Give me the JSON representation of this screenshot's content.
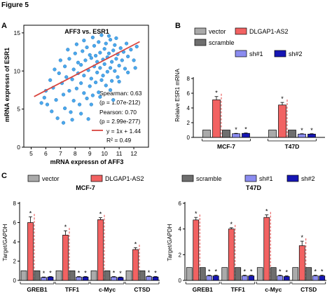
{
  "figure_title": "Figure 5",
  "panels": {
    "a": "A",
    "b": "B",
    "c": "C"
  },
  "colors": {
    "vector": "#aaaaaa",
    "dlgap": "#f26262",
    "scramble": "#6e6e6e",
    "sh1": "#8b8cf0",
    "sh2": "#1616b4",
    "scatter_point": "#4aa8ec",
    "fit_line": "#d9453e"
  },
  "legend": {
    "items": [
      {
        "key": "vector",
        "label": "vector"
      },
      {
        "key": "dlgap",
        "label": "DLGAP1-AS2"
      },
      {
        "key": "scramble",
        "label": "scramble"
      },
      {
        "key": "sh1",
        "label": "sh#1"
      },
      {
        "key": "sh2",
        "label": "sh#2"
      }
    ]
  },
  "scatter_stats": {
    "spearman": "Spearman: 0.63",
    "spearman_p": "(p = 1.07e-212)",
    "pearson": "Pearson: 0.70",
    "pearson_p": "(p = 2.99e-277)",
    "fit": "y = 1x + 1.44",
    "r2": "R² = 0.49"
  },
  "chart_data": [
    {
      "type": "scatter",
      "title": "AFF3 vs. ESR1",
      "xlabel": "mRNA expressn of AFF3",
      "ylabel": "mRNA expressn of ESR1",
      "xlim": [
        4.5,
        13
      ],
      "ylim": [
        0,
        16
      ],
      "xticks": [
        5,
        6,
        7,
        8,
        9,
        10,
        11,
        12
      ],
      "yticks": [
        0,
        5,
        10,
        15
      ],
      "fit_line": {
        "slope": 1,
        "intercept": 1.44
      },
      "points": [
        [
          5.9,
          6.5
        ],
        [
          6.1,
          5.6
        ],
        [
          6.5,
          7.8
        ],
        [
          6.7,
          6.2
        ],
        [
          6.9,
          9.7
        ],
        [
          6.8,
          3.8
        ],
        [
          7.1,
          8.4
        ],
        [
          7.2,
          6.9
        ],
        [
          7.3,
          10.6
        ],
        [
          7.3,
          5.1
        ],
        [
          7.4,
          9.2
        ],
        [
          7.6,
          7.4
        ],
        [
          7.6,
          11.6
        ],
        [
          7.7,
          4.6
        ],
        [
          7.8,
          8.9
        ],
        [
          7.9,
          10.2
        ],
        [
          7.9,
          6.1
        ],
        [
          8.0,
          12.3
        ],
        [
          8.1,
          7.7
        ],
        [
          8.2,
          9.7
        ],
        [
          8.2,
          11.1
        ],
        [
          8.3,
          5.6
        ],
        [
          8.4,
          8.4
        ],
        [
          8.4,
          10.8
        ],
        [
          8.5,
          12.6
        ],
        [
          8.6,
          7.1
        ],
        [
          8.6,
          9.4
        ],
        [
          8.7,
          11.4
        ],
        [
          8.8,
          6.4
        ],
        [
          8.8,
          13.1
        ],
        [
          8.9,
          10.1
        ],
        [
          9.0,
          8.0
        ],
        [
          9.0,
          12.1
        ],
        [
          9.1,
          9.0
        ],
        [
          9.1,
          11.7
        ],
        [
          9.2,
          6.8
        ],
        [
          9.3,
          10.6
        ],
        [
          9.3,
          13.3
        ],
        [
          9.4,
          8.5
        ],
        [
          9.4,
          12.0
        ],
        [
          9.5,
          9.8
        ],
        [
          9.5,
          11.2
        ],
        [
          9.6,
          7.2
        ],
        [
          9.6,
          13.8
        ],
        [
          9.7,
          10.4
        ],
        [
          9.7,
          12.4
        ],
        [
          9.8,
          8.8
        ],
        [
          9.9,
          11.5
        ],
        [
          9.9,
          9.4
        ],
        [
          10.0,
          12.9
        ],
        [
          10.0,
          10.9
        ],
        [
          10.1,
          8.1
        ],
        [
          10.1,
          13.6
        ],
        [
          10.2,
          11.8
        ],
        [
          10.2,
          9.9
        ],
        [
          10.3,
          12.3
        ],
        [
          10.4,
          10.4
        ],
        [
          10.4,
          14.1
        ],
        [
          10.5,
          11.2
        ],
        [
          10.5,
          8.7
        ],
        [
          10.6,
          12.7
        ],
        [
          10.7,
          10.0
        ],
        [
          10.7,
          13.4
        ],
        [
          10.8,
          11.6
        ],
        [
          10.9,
          9.2
        ],
        [
          10.9,
          12.2
        ],
        [
          11.0,
          10.7
        ],
        [
          11.1,
          13.0
        ],
        [
          11.2,
          11.4
        ],
        [
          11.3,
          12.5
        ],
        [
          11.4,
          10.3
        ],
        [
          11.5,
          13.6
        ],
        [
          11.6,
          11.9
        ],
        [
          11.8,
          12.8
        ],
        [
          12.0,
          11.4
        ],
        [
          12.2,
          13.2
        ],
        [
          8.1,
          13.5
        ],
        [
          8.6,
          14.0
        ],
        [
          9.2,
          14.4
        ],
        [
          9.8,
          14.7
        ],
        [
          10.3,
          14.6
        ],
        [
          10.8,
          14.3
        ],
        [
          7.5,
          12.8
        ],
        [
          7.0,
          11.4
        ],
        [
          6.6,
          10.2
        ],
        [
          6.3,
          8.8
        ],
        [
          6.0,
          7.4
        ],
        [
          5.7,
          5.8
        ],
        [
          7.8,
          3.6
        ],
        [
          8.4,
          4.4
        ],
        [
          9.1,
          5.6
        ],
        [
          9.7,
          6.6
        ],
        [
          10.4,
          7.5
        ],
        [
          11.0,
          8.6
        ],
        [
          11.6,
          9.8
        ],
        [
          12.1,
          10.4
        ],
        [
          8.9,
          3.7
        ],
        [
          7.2,
          3.2
        ],
        [
          6.4,
          4.7
        ],
        [
          10.6,
          6.2
        ]
      ]
    },
    {
      "type": "bar",
      "ylabel": "Relaive ESR1 mRNA",
      "ylim": [
        0,
        8
      ],
      "yticks": [
        0,
        2,
        4,
        6,
        8
      ],
      "categories": [
        "MCF-7",
        "T47D"
      ],
      "series": [
        {
          "name": "vector",
          "key": "vector",
          "values": [
            1.0,
            1.0
          ],
          "errors": [
            0,
            0
          ],
          "stars": [
            "",
            ""
          ]
        },
        {
          "name": "DLGAP1-AS2",
          "key": "dlgap",
          "values": [
            5.1,
            4.4
          ],
          "errors": [
            0.45,
            0.35
          ],
          "stars": [
            "*",
            "*"
          ]
        },
        {
          "name": "scramble",
          "key": "scramble",
          "values": [
            1.0,
            1.0
          ],
          "errors": [
            0,
            0
          ],
          "stars": [
            "",
            ""
          ]
        },
        {
          "name": "sh#1",
          "key": "sh1",
          "values": [
            0.5,
            0.45
          ],
          "errors": [
            0.05,
            0.05
          ],
          "stars": [
            "*",
            "*"
          ]
        },
        {
          "name": "sh#2",
          "key": "sh2",
          "values": [
            0.55,
            0.45
          ],
          "errors": [
            0.05,
            0.05
          ],
          "stars": [
            "*",
            "*"
          ]
        }
      ]
    },
    {
      "type": "bar",
      "title": "MCF-7",
      "ylabel": "Target/GAPDH",
      "ylim": [
        0,
        8
      ],
      "yticks": [
        0,
        2,
        4,
        6,
        8
      ],
      "categories": [
        "GREB1",
        "TFF1",
        "c-Myc",
        "CTSD"
      ],
      "series": [
        {
          "name": "vector",
          "key": "vector",
          "values": [
            1.0,
            1.0,
            1.0,
            1.0
          ],
          "errors": [
            0,
            0,
            0,
            0
          ],
          "stars": [
            "",
            "",
            "",
            ""
          ]
        },
        {
          "name": "DLGAP1-AS2",
          "key": "dlgap",
          "values": [
            6.0,
            4.7,
            6.3,
            3.2
          ],
          "errors": [
            0.6,
            0.45,
            0.2,
            0.2
          ],
          "stars": [
            "*",
            "*",
            "*",
            "*"
          ]
        },
        {
          "name": "scramble",
          "key": "scramble",
          "values": [
            1.0,
            1.0,
            1.0,
            1.0
          ],
          "errors": [
            0,
            0,
            0,
            0
          ],
          "stars": [
            "",
            "",
            "",
            ""
          ]
        },
        {
          "name": "sh#1",
          "key": "sh1",
          "values": [
            0.3,
            0.35,
            0.35,
            0.4
          ],
          "errors": [
            0.05,
            0.05,
            0.05,
            0.05
          ],
          "stars": [
            "*",
            "*",
            "*",
            "*"
          ]
        },
        {
          "name": "sh#2",
          "key": "sh2",
          "values": [
            0.35,
            0.35,
            0.3,
            0.35
          ],
          "errors": [
            0.05,
            0.05,
            0.05,
            0.05
          ],
          "stars": [
            "*",
            "*",
            "*",
            "*"
          ]
        }
      ]
    },
    {
      "type": "bar",
      "title": "T47D",
      "ylabel": "Target/GAPDH",
      "ylim": [
        0,
        6
      ],
      "yticks": [
        0,
        2,
        4,
        6
      ],
      "categories": [
        "GREB1",
        "TFF1",
        "c-Myc",
        "CTSD"
      ],
      "series": [
        {
          "name": "vector",
          "key": "vector",
          "values": [
            1.0,
            1.0,
            1.0,
            1.0
          ],
          "errors": [
            0,
            0,
            0,
            0
          ],
          "stars": [
            "",
            "",
            "",
            ""
          ]
        },
        {
          "name": "DLGAP1-AS2",
          "key": "dlgap",
          "values": [
            4.7,
            4.0,
            4.9,
            2.7
          ],
          "errors": [
            0.2,
            0.1,
            0.2,
            0.35
          ],
          "stars": [
            "*",
            "*",
            "*",
            "*"
          ]
        },
        {
          "name": "scramble",
          "key": "scramble",
          "values": [
            1.0,
            1.0,
            1.0,
            1.0
          ],
          "errors": [
            0,
            0,
            0,
            0
          ],
          "stars": [
            "",
            "",
            "",
            ""
          ]
        },
        {
          "name": "sh#1",
          "key": "sh1",
          "values": [
            0.35,
            0.35,
            0.35,
            0.35
          ],
          "errors": [
            0.05,
            0.05,
            0.05,
            0.05
          ],
          "stars": [
            "*",
            "*",
            "*",
            "*"
          ]
        },
        {
          "name": "sh#2",
          "key": "sh2",
          "values": [
            0.35,
            0.35,
            0.3,
            0.35
          ],
          "errors": [
            0.05,
            0.05,
            0.05,
            0.05
          ],
          "stars": [
            "*",
            "*",
            "*",
            "*"
          ]
        }
      ]
    }
  ]
}
